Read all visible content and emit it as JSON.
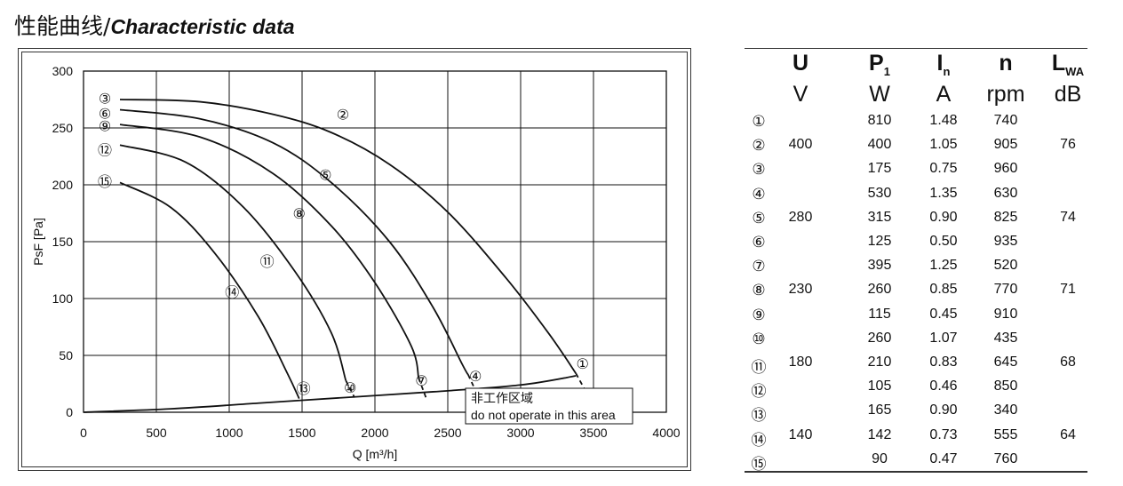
{
  "page_title": {
    "zh": "性能曲线/",
    "en": "Characteristic data"
  },
  "notice": {
    "zh": "非工作区域",
    "en": "do not operate in this area"
  },
  "table": {
    "headers": [
      {
        "main": "U",
        "sub": ""
      },
      {
        "main": "P",
        "sub": "1"
      },
      {
        "main": "I",
        "sub": "n"
      },
      {
        "main": "n",
        "sub": ""
      },
      {
        "main": "L",
        "sub": "WA"
      }
    ],
    "units": [
      "V",
      "W",
      "A",
      "rpm",
      "dB"
    ],
    "rows": [
      {
        "id": "①",
        "U": "",
        "P1": "810",
        "In": "1.48",
        "n": "740",
        "LWA": ""
      },
      {
        "id": "②",
        "U": "400",
        "P1": "400",
        "In": "1.05",
        "n": "905",
        "LWA": "76"
      },
      {
        "id": "③",
        "U": "",
        "P1": "175",
        "In": "0.75",
        "n": "960",
        "LWA": ""
      },
      {
        "id": "④",
        "U": "",
        "P1": "530",
        "In": "1.35",
        "n": "630",
        "LWA": ""
      },
      {
        "id": "⑤",
        "U": "280",
        "P1": "315",
        "In": "0.90",
        "n": "825",
        "LWA": "74"
      },
      {
        "id": "⑥",
        "U": "",
        "P1": "125",
        "In": "0.50",
        "n": "935",
        "LWA": ""
      },
      {
        "id": "⑦",
        "U": "",
        "P1": "395",
        "In": "1.25",
        "n": "520",
        "LWA": ""
      },
      {
        "id": "⑧",
        "U": "230",
        "P1": "260",
        "In": "0.85",
        "n": "770",
        "LWA": "71"
      },
      {
        "id": "⑨",
        "U": "",
        "P1": "115",
        "In": "0.45",
        "n": "910",
        "LWA": ""
      },
      {
        "id": "⑩",
        "U": "",
        "P1": "260",
        "In": "1.07",
        "n": "435",
        "LWA": ""
      },
      {
        "id": "⑪",
        "U": "180",
        "P1": "210",
        "In": "0.83",
        "n": "645",
        "LWA": "68"
      },
      {
        "id": "⑫",
        "U": "",
        "P1": "105",
        "In": "0.46",
        "n": "850",
        "LWA": ""
      },
      {
        "id": "⑬",
        "U": "",
        "P1": "165",
        "In": "0.90",
        "n": "340",
        "LWA": ""
      },
      {
        "id": "⑭",
        "U": "140",
        "P1": "142",
        "In": "0.73",
        "n": "555",
        "LWA": "64"
      },
      {
        "id": "⑮",
        "U": "",
        "P1": "90",
        "In": "0.47",
        "n": "760",
        "LWA": ""
      }
    ]
  },
  "chart_data": {
    "type": "line",
    "xlabel": "Q [m³/h]",
    "ylabel": "PsF [Pa]",
    "xlim": [
      0,
      4000
    ],
    "ylim": [
      0,
      300
    ],
    "xticks": [
      0,
      500,
      1000,
      1500,
      2000,
      2500,
      3000,
      3500,
      4000
    ],
    "yticks": [
      0,
      50,
      100,
      150,
      200,
      250,
      300
    ],
    "grid": true,
    "series": [
      {
        "name": "③",
        "label_at": [
          0,
          276
        ],
        "values": [
          [
            250,
            275
          ],
          [
            800,
            273
          ],
          [
            1300,
            262
          ],
          [
            1700,
            246
          ],
          [
            2100,
            218
          ],
          [
            2500,
            176
          ],
          [
            2900,
            118
          ],
          [
            3200,
            68
          ],
          [
            3380,
            34
          ],
          [
            3440,
            20
          ]
        ],
        "dashed_from": [
          3380,
          34
        ]
      },
      {
        "name": "②",
        "label_at": null,
        "values": []
      },
      {
        "name": "①",
        "label_at": [
          3425,
          43
        ],
        "values": []
      },
      {
        "name": "⑥",
        "label_at": [
          0,
          263
        ],
        "values": [
          [
            250,
            266
          ],
          [
            800,
            258
          ],
          [
            1300,
            237
          ],
          [
            1700,
            202
          ],
          [
            2100,
            150
          ],
          [
            2400,
            92
          ],
          [
            2600,
            42
          ],
          [
            2640,
            33
          ],
          [
            2680,
            22
          ]
        ],
        "dashed_from": [
          2640,
          33
        ]
      },
      {
        "name": "⑨",
        "label_at": [
          0,
          252
        ],
        "values": [
          [
            250,
            253
          ],
          [
            800,
            242
          ],
          [
            1300,
            210
          ],
          [
            1700,
            164
          ],
          [
            2000,
            114
          ],
          [
            2250,
            58
          ],
          [
            2300,
            30
          ],
          [
            2350,
            13
          ]
        ],
        "dashed_from": [
          2300,
          30
        ]
      },
      {
        "name": "⑫",
        "label_at": [
          0,
          231
        ],
        "values": [
          [
            250,
            235
          ],
          [
            700,
            220
          ],
          [
            1100,
            180
          ],
          [
            1450,
            124
          ],
          [
            1700,
            70
          ],
          [
            1800,
            28
          ],
          [
            1860,
            13
          ]
        ],
        "dashed_from": [
          1800,
          28
        ]
      },
      {
        "name": "⑮",
        "label_at": [
          0,
          203
        ],
        "values": [
          [
            250,
            202
          ],
          [
            600,
            180
          ],
          [
            900,
            140
          ],
          [
            1200,
            84
          ],
          [
            1400,
            34
          ],
          [
            1480,
            12
          ]
        ],
        "dashed_from": null
      },
      {
        "name": "non-operating",
        "label_at": null,
        "values": [
          [
            0,
            0
          ],
          [
            600,
            3
          ],
          [
            1200,
            8
          ],
          [
            1800,
            13
          ],
          [
            2400,
            18
          ],
          [
            3000,
            24
          ],
          [
            3380,
            32
          ]
        ],
        "dashed_from": null
      }
    ],
    "curve_labels": [
      {
        "text": "②",
        "x": 1780,
        "y": 262
      },
      {
        "text": "⑤",
        "x": 1660,
        "y": 209
      },
      {
        "text": "⑧",
        "x": 1480,
        "y": 175
      },
      {
        "text": "⑪",
        "x": 1260,
        "y": 133
      },
      {
        "text": "⑭",
        "x": 1020,
        "y": 106
      },
      {
        "text": "⑬",
        "x": 1510,
        "y": 21
      },
      {
        "text": "⑩",
        "x": 1830,
        "y": 22
      },
      {
        "text": "⑦",
        "x": 2320,
        "y": 28
      },
      {
        "text": "④",
        "x": 2690,
        "y": 32
      }
    ]
  }
}
